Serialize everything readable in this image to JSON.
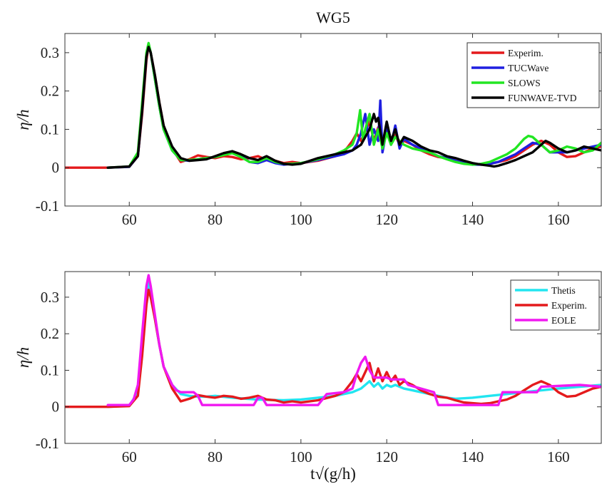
{
  "figure": {
    "title": "WG5",
    "xlabel": "t√(g/h)"
  },
  "chart_data": [
    {
      "type": "line",
      "title": "WG5",
      "xlabel": "",
      "ylabel": "η/h",
      "xlim": [
        45,
        170
      ],
      "ylim": [
        -0.1,
        0.35
      ],
      "xticks": [
        60,
        80,
        100,
        120,
        140,
        160
      ],
      "yticks": [
        -0.1,
        0,
        0.1,
        0.2,
        0.3
      ],
      "ytick_labels": [
        "-0.1",
        "0",
        "0.1",
        "0.2",
        "0.3"
      ],
      "grid": false,
      "legend_position": "top-right",
      "series": [
        {
          "name": "Experim.",
          "color": "#e41a1c",
          "x": [
            45,
            55,
            60,
            62,
            63,
            64,
            64.5,
            65,
            66,
            67,
            68,
            70,
            72,
            74,
            76,
            78,
            80,
            82,
            84,
            86,
            88,
            90,
            92,
            94,
            96,
            98,
            100,
            104,
            108,
            110,
            112,
            113,
            114,
            115,
            116,
            117,
            118,
            119,
            120,
            121,
            122,
            123,
            124,
            126,
            128,
            130,
            132,
            134,
            136,
            138,
            140,
            142,
            144,
            146,
            148,
            150,
            152,
            154,
            156,
            158,
            160,
            162,
            164,
            166,
            168,
            170
          ],
          "y": [
            0,
            0,
            0.002,
            0.03,
            0.14,
            0.28,
            0.32,
            0.3,
            0.24,
            0.17,
            0.11,
            0.05,
            0.015,
            0.022,
            0.032,
            0.028,
            0.025,
            0.03,
            0.028,
            0.022,
            0.025,
            0.03,
            0.02,
            0.018,
            0.012,
            0.015,
            0.012,
            0.018,
            0.03,
            0.04,
            0.07,
            0.09,
            0.07,
            0.095,
            0.12,
            0.07,
            0.105,
            0.07,
            0.095,
            0.07,
            0.085,
            0.06,
            0.07,
            0.06,
            0.045,
            0.035,
            0.028,
            0.025,
            0.018,
            0.012,
            0.01,
            0.008,
            0.01,
            0.015,
            0.02,
            0.03,
            0.045,
            0.06,
            0.07,
            0.06,
            0.04,
            0.028,
            0.03,
            0.04,
            0.05,
            0.055
          ]
        },
        {
          "name": "TUCWave",
          "color": "#1f1fe0",
          "x": [
            55,
            60,
            62,
            63,
            64,
            64.5,
            65,
            66,
            67,
            68,
            70,
            72,
            74,
            76,
            78,
            80,
            82,
            84,
            86,
            88,
            90,
            92,
            94,
            96,
            98,
            100,
            104,
            108,
            110,
            112,
            113,
            114,
            115,
            116,
            117,
            118,
            118.5,
            119,
            120,
            121,
            122,
            123,
            124,
            126,
            128,
            130,
            132,
            134,
            136,
            138,
            140,
            142,
            144,
            146,
            148,
            150,
            152,
            154,
            156,
            158,
            160,
            162,
            164,
            166,
            168,
            170
          ],
          "y": [
            0,
            0.002,
            0.03,
            0.15,
            0.29,
            0.32,
            0.3,
            0.23,
            0.16,
            0.1,
            0.045,
            0.02,
            0.018,
            0.022,
            0.025,
            0.028,
            0.035,
            0.04,
            0.03,
            0.015,
            0.012,
            0.02,
            0.012,
            0.008,
            0.01,
            0.012,
            0.02,
            0.03,
            0.035,
            0.045,
            0.06,
            0.09,
            0.14,
            0.06,
            0.1,
            0.07,
            0.175,
            0.04,
            0.1,
            0.06,
            0.11,
            0.05,
            0.075,
            0.06,
            0.05,
            0.04,
            0.03,
            0.025,
            0.018,
            0.012,
            0.008,
            0.008,
            0.01,
            0.015,
            0.025,
            0.035,
            0.05,
            0.065,
            0.06,
            0.04,
            0.04,
            0.04,
            0.045,
            0.05,
            0.055,
            0.06
          ]
        },
        {
          "name": "SLOWS",
          "color": "#22e622",
          "x": [
            55,
            60,
            62,
            63,
            64,
            64.5,
            65,
            66,
            67,
            68,
            70,
            72,
            74,
            76,
            78,
            80,
            82,
            84,
            86,
            88,
            90,
            92,
            94,
            96,
            98,
            100,
            104,
            108,
            110,
            112,
            113,
            113.8,
            114.5,
            115,
            116,
            117,
            118,
            119,
            120,
            121,
            122,
            123,
            124,
            126,
            128,
            130,
            132,
            134,
            136,
            138,
            140,
            142,
            144,
            146,
            148,
            150,
            152,
            153,
            154,
            156,
            158,
            160,
            162,
            164,
            166,
            168,
            170
          ],
          "y": [
            0,
            0.003,
            0.04,
            0.17,
            0.3,
            0.325,
            0.3,
            0.23,
            0.16,
            0.1,
            0.045,
            0.02,
            0.02,
            0.022,
            0.025,
            0.028,
            0.033,
            0.038,
            0.028,
            0.015,
            0.015,
            0.025,
            0.015,
            0.01,
            0.01,
            0.012,
            0.022,
            0.035,
            0.045,
            0.06,
            0.09,
            0.15,
            0.07,
            0.1,
            0.14,
            0.06,
            0.1,
            0.05,
            0.09,
            0.06,
            0.08,
            0.07,
            0.06,
            0.05,
            0.045,
            0.04,
            0.03,
            0.022,
            0.015,
            0.01,
            0.008,
            0.01,
            0.015,
            0.025,
            0.035,
            0.05,
            0.075,
            0.083,
            0.08,
            0.06,
            0.04,
            0.045,
            0.055,
            0.05,
            0.04,
            0.045,
            0.065
          ]
        },
        {
          "name": "FUNWAVE-TVD",
          "color": "#000000",
          "x": [
            55,
            60,
            62,
            63,
            64,
            64.5,
            65,
            66,
            67,
            68,
            70,
            72,
            74,
            76,
            78,
            80,
            82,
            84,
            86,
            88,
            90,
            92,
            94,
            96,
            98,
            100,
            104,
            108,
            110,
            112,
            114,
            115,
            116,
            117,
            117.5,
            118,
            119,
            120,
            121,
            122,
            123,
            124,
            126,
            128,
            130,
            132,
            134,
            136,
            138,
            140,
            142,
            144,
            145,
            146,
            148,
            150,
            152,
            154,
            156,
            157,
            158,
            160,
            162,
            164,
            166,
            168,
            170
          ],
          "y": [
            0,
            0.003,
            0.03,
            0.15,
            0.29,
            0.315,
            0.3,
            0.24,
            0.17,
            0.11,
            0.055,
            0.025,
            0.018,
            0.02,
            0.022,
            0.03,
            0.038,
            0.043,
            0.035,
            0.025,
            0.02,
            0.03,
            0.018,
            0.01,
            0.008,
            0.01,
            0.025,
            0.035,
            0.04,
            0.045,
            0.06,
            0.08,
            0.1,
            0.14,
            0.12,
            0.13,
            0.06,
            0.12,
            0.07,
            0.1,
            0.06,
            0.08,
            0.07,
            0.055,
            0.045,
            0.04,
            0.03,
            0.025,
            0.018,
            0.012,
            0.008,
            0.005,
            0.003,
            0.005,
            0.012,
            0.02,
            0.03,
            0.04,
            0.06,
            0.07,
            0.065,
            0.05,
            0.04,
            0.045,
            0.055,
            0.05,
            0.045
          ]
        }
      ]
    },
    {
      "type": "line",
      "title": "",
      "xlabel": "t√(g/h)",
      "ylabel": "η/h",
      "xlim": [
        45,
        170
      ],
      "ylim": [
        -0.1,
        0.37
      ],
      "xticks": [
        60,
        80,
        100,
        120,
        140,
        160
      ],
      "yticks": [
        -0.1,
        0,
        0.1,
        0.2,
        0.3
      ],
      "ytick_labels": [
        "-0.1",
        "0",
        "0.1",
        "0.2",
        "0.3"
      ],
      "grid": false,
      "legend_position": "top-right",
      "series": [
        {
          "name": "Thetis",
          "color": "#22e5f0",
          "x": [
            55,
            60,
            62,
            63,
            64,
            64.5,
            65,
            66,
            67,
            68,
            70,
            72,
            74,
            76,
            78,
            80,
            84,
            90,
            96,
            100,
            104,
            108,
            112,
            114,
            115,
            116,
            117,
            118,
            119,
            120,
            121,
            122,
            124,
            126,
            128,
            130,
            132,
            134,
            136,
            140,
            144,
            148,
            152,
            156,
            160,
            165,
            170
          ],
          "y": [
            0,
            0.003,
            0.04,
            0.17,
            0.31,
            0.34,
            0.31,
            0.24,
            0.17,
            0.11,
            0.06,
            0.035,
            0.03,
            0.028,
            0.028,
            0.03,
            0.025,
            0.02,
            0.018,
            0.02,
            0.025,
            0.03,
            0.04,
            0.05,
            0.06,
            0.07,
            0.055,
            0.065,
            0.05,
            0.06,
            0.055,
            0.06,
            0.05,
            0.045,
            0.04,
            0.035,
            0.03,
            0.025,
            0.022,
            0.025,
            0.03,
            0.035,
            0.04,
            0.045,
            0.05,
            0.055,
            0.06
          ]
        },
        {
          "name": "Experim.",
          "color": "#e41a1c",
          "x": [
            45,
            55,
            60,
            62,
            63,
            64,
            64.5,
            65,
            66,
            67,
            68,
            70,
            72,
            74,
            76,
            78,
            80,
            82,
            84,
            86,
            88,
            90,
            92,
            94,
            96,
            98,
            100,
            104,
            108,
            110,
            112,
            113,
            114,
            115,
            116,
            117,
            118,
            119,
            120,
            121,
            122,
            123,
            124,
            126,
            128,
            130,
            132,
            134,
            136,
            138,
            140,
            142,
            144,
            146,
            148,
            150,
            152,
            154,
            156,
            158,
            160,
            162,
            164,
            166,
            168,
            170
          ],
          "y": [
            0,
            0,
            0.002,
            0.03,
            0.14,
            0.28,
            0.32,
            0.3,
            0.24,
            0.17,
            0.11,
            0.05,
            0.015,
            0.022,
            0.032,
            0.028,
            0.025,
            0.03,
            0.028,
            0.022,
            0.025,
            0.03,
            0.02,
            0.018,
            0.012,
            0.015,
            0.012,
            0.018,
            0.03,
            0.04,
            0.07,
            0.09,
            0.07,
            0.095,
            0.12,
            0.07,
            0.105,
            0.07,
            0.095,
            0.07,
            0.085,
            0.06,
            0.07,
            0.06,
            0.045,
            0.035,
            0.028,
            0.025,
            0.018,
            0.012,
            0.01,
            0.008,
            0.01,
            0.015,
            0.02,
            0.03,
            0.045,
            0.06,
            0.07,
            0.06,
            0.04,
            0.028,
            0.03,
            0.04,
            0.05,
            0.055
          ]
        },
        {
          "name": "EOLE",
          "color": "#f019f0",
          "x": [
            55,
            60,
            61,
            62,
            63,
            64,
            64.5,
            65,
            66,
            67,
            68,
            70,
            71,
            72,
            75,
            76,
            77,
            78,
            89,
            90,
            91,
            92,
            104,
            105,
            106,
            110,
            112,
            113,
            114,
            115,
            116,
            117,
            120,
            121,
            124,
            125,
            131,
            132,
            146,
            147,
            155,
            156,
            165,
            170
          ],
          "y": [
            0.005,
            0.005,
            0.02,
            0.06,
            0.2,
            0.33,
            0.36,
            0.33,
            0.25,
            0.17,
            0.11,
            0.06,
            0.045,
            0.04,
            0.04,
            0.03,
            0.005,
            0.005,
            0.005,
            0.025,
            0.025,
            0.005,
            0.005,
            0.02,
            0.035,
            0.04,
            0.05,
            0.09,
            0.12,
            0.137,
            0.1,
            0.08,
            0.08,
            0.075,
            0.075,
            0.06,
            0.04,
            0.005,
            0.005,
            0.04,
            0.04,
            0.055,
            0.06,
            0.055
          ]
        }
      ]
    }
  ]
}
